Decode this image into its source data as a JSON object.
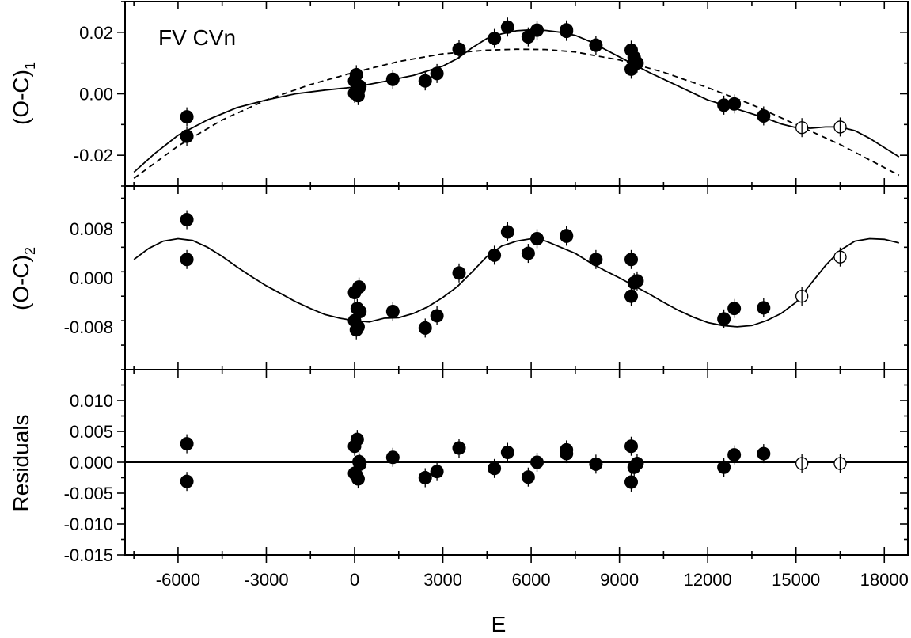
{
  "chart_data": [
    {
      "panel": "top",
      "type": "scatter",
      "title": "",
      "annotation": "FV CVn",
      "xlabel": "E",
      "ylabel": "(O-C)",
      "ylabel_subscript": "1",
      "xlim": [
        -7800,
        18800
      ],
      "ylim": [
        -0.03,
        0.03
      ],
      "yticks": [
        -0.02,
        0.0,
        0.02
      ],
      "ytick_labels": [
        "-0.02",
        "0.00",
        "0.02"
      ],
      "xticks": [
        -6000,
        -3000,
        0,
        3000,
        6000,
        9000,
        12000,
        15000,
        18000
      ],
      "series": [
        {
          "marker": "filled-circle",
          "x": [
            -5700,
            -5700,
            0,
            0,
            60,
            90,
            120,
            150,
            180,
            1300,
            2400,
            2800,
            3550,
            4750,
            5200,
            5900,
            6200,
            7200,
            7200,
            8200,
            9400,
            9400,
            9500,
            9600,
            12550,
            12900,
            13900
          ],
          "y": [
            -0.0075,
            -0.0138,
            0.0002,
            0.0042,
            0.0062,
            0.0028,
            -0.0006,
            0.0016,
            0.0024,
            0.0047,
            0.0042,
            0.0066,
            0.0145,
            0.018,
            0.0217,
            0.0185,
            0.0207,
            0.0208,
            0.0203,
            0.0158,
            0.0142,
            0.008,
            0.0118,
            0.01,
            -0.0037,
            -0.0033,
            -0.0072
          ]
        },
        {
          "marker": "open-circle",
          "x": [
            15200,
            16500
          ],
          "y": [
            -0.011,
            -0.0108
          ]
        },
        {
          "marker": "solid-line-fit",
          "x": [
            -7500,
            -6800,
            -6000,
            -5000,
            -4000,
            -3000,
            -2000,
            -1000,
            0,
            1000,
            2000,
            3000,
            3500,
            4000,
            4500,
            5000,
            5500,
            6000,
            6500,
            7000,
            7500,
            8000,
            9000,
            10000,
            11000,
            12000,
            13000,
            14000,
            14500,
            15000,
            15500,
            16000,
            16500,
            17000,
            17500,
            18000,
            18500
          ],
          "y": [
            -0.0255,
            -0.0195,
            -0.0135,
            -0.0085,
            -0.0045,
            -0.002,
            0.0,
            0.0012,
            0.0022,
            0.004,
            0.006,
            0.009,
            0.0115,
            0.015,
            0.018,
            0.0195,
            0.0205,
            0.0208,
            0.0206,
            0.02,
            0.019,
            0.017,
            0.012,
            0.007,
            0.0025,
            -0.002,
            -0.005,
            -0.008,
            -0.0098,
            -0.011,
            -0.0112,
            -0.0108,
            -0.0108,
            -0.012,
            -0.0145,
            -0.0175,
            -0.0205
          ]
        },
        {
          "marker": "dashed-line-fit",
          "x": [
            -7500,
            -6000,
            -4500,
            -3000,
            -1500,
            0,
            1500,
            3000,
            4500,
            5500,
            6500,
            7500,
            9000,
            10500,
            12000,
            13500,
            15000,
            16500,
            18000,
            18500
          ],
          "y": [
            -0.0275,
            -0.017,
            -0.0085,
            -0.002,
            0.003,
            0.007,
            0.0105,
            0.013,
            0.0142,
            0.0145,
            0.0144,
            0.0136,
            0.011,
            0.007,
            0.002,
            -0.0035,
            -0.01,
            -0.0165,
            -0.024,
            -0.0265
          ]
        }
      ]
    },
    {
      "panel": "middle",
      "type": "scatter",
      "ylabel": "(O-C)",
      "ylabel_subscript": "2",
      "xlim": [
        -7800,
        18800
      ],
      "ylim": [
        -0.015,
        0.015
      ],
      "yticks": [
        -0.008,
        0.0,
        0.008
      ],
      "ytick_labels": [
        "-0.008",
        "0.000",
        "0.008"
      ],
      "series": [
        {
          "marker": "filled-circle",
          "x": [
            -5700,
            -5700,
            0,
            0,
            60,
            90,
            120,
            150,
            180,
            1300,
            2400,
            2800,
            3550,
            4750,
            5200,
            5900,
            6200,
            7200,
            7200,
            8200,
            9400,
            9400,
            9500,
            9600,
            12550,
            12900,
            13900
          ],
          "y": [
            0.0095,
            0.003,
            -0.0024,
            -0.007,
            -0.0085,
            -0.005,
            -0.008,
            -0.0015,
            -0.0055,
            -0.0055,
            -0.0082,
            -0.0062,
            0.0008,
            0.0037,
            0.0075,
            0.004,
            0.0064,
            0.0069,
            0.0068,
            0.003,
            0.003,
            -0.003,
            -0.0008,
            -0.0005,
            -0.0067,
            -0.005,
            -0.0049
          ]
        },
        {
          "marker": "open-circle",
          "x": [
            15200,
            16500
          ],
          "y": [
            -0.003,
            0.0034
          ]
        },
        {
          "marker": "solid-line-fit",
          "x": [
            -7500,
            -7000,
            -6500,
            -6000,
            -5500,
            -5000,
            -4500,
            -4000,
            -3500,
            -3000,
            -2500,
            -2000,
            -1500,
            -1000,
            -500,
            0,
            500,
            1000,
            1500,
            2000,
            2500,
            3000,
            3500,
            4000,
            4500,
            5000,
            5500,
            6000,
            6500,
            7000,
            7500,
            8000,
            8500,
            9000,
            9500,
            10000,
            10500,
            11000,
            11500,
            12000,
            12500,
            13000,
            13500,
            14000,
            14500,
            15000,
            15500,
            16000,
            16500,
            17000,
            17500,
            18000,
            18500
          ],
          "y": [
            0.003,
            0.0048,
            0.006,
            0.0064,
            0.0061,
            0.005,
            0.0035,
            0.0018,
            0.0002,
            -0.0013,
            -0.0026,
            -0.0039,
            -0.005,
            -0.006,
            -0.0066,
            -0.007,
            -0.0072,
            -0.0066,
            -0.0065,
            -0.0058,
            -0.0047,
            -0.0032,
            -0.0014,
            0.001,
            0.0035,
            0.0052,
            0.006,
            0.0064,
            0.006,
            0.005,
            0.004,
            0.0025,
            0.0012,
            0.0,
            -0.0013,
            -0.0026,
            -0.004,
            -0.0053,
            -0.0064,
            -0.0073,
            -0.0078,
            -0.008,
            -0.0078,
            -0.007,
            -0.0058,
            -0.004,
            -0.001,
            0.002,
            0.0045,
            0.006,
            0.0064,
            0.0063,
            0.0057
          ]
        }
      ]
    },
    {
      "panel": "bottom",
      "type": "scatter",
      "ylabel": "Residuals",
      "xlabel": "E",
      "xlim": [
        -7800,
        18800
      ],
      "ylim": [
        -0.015,
        0.015
      ],
      "yticks": [
        -0.015,
        -0.01,
        -0.005,
        0.0,
        0.005,
        0.01
      ],
      "ytick_labels": [
        "-0.015",
        "-0.010",
        "-0.005",
        "0.000",
        "0.005",
        "0.010"
      ],
      "xticks": [
        -6000,
        -3000,
        0,
        3000,
        6000,
        9000,
        12000,
        15000,
        18000
      ],
      "xtick_labels": [
        "-6000",
        "-3000",
        "0",
        "3000",
        "6000",
        "9000",
        "12000",
        "15000",
        "18000"
      ],
      "series": [
        {
          "marker": "filled-circle",
          "x": [
            -5700,
            -5700,
            0,
            0,
            60,
            90,
            120,
            150,
            180,
            1300,
            2400,
            2800,
            3550,
            4750,
            5200,
            5900,
            6200,
            7200,
            7200,
            8200,
            9400,
            9400,
            9500,
            9600,
            12550,
            12900,
            13900
          ],
          "y": [
            0.003,
            -0.0031,
            0.0026,
            -0.0018,
            -0.0021,
            0.0037,
            -0.0027,
            0.0001,
            -0.0003,
            0.0008,
            -0.0025,
            -0.0015,
            0.0023,
            -0.001,
            0.0016,
            -0.0024,
            0.0,
            0.002,
            0.0014,
            -0.0003,
            0.0026,
            -0.0032,
            -0.0008,
            -0.0002,
            -0.0008,
            0.0012,
            0.0014
          ]
        },
        {
          "marker": "open-circle",
          "x": [
            15200,
            16500
          ],
          "y": [
            -0.0002,
            -0.0002
          ]
        },
        {
          "marker": "zero-line",
          "y": 0.0
        }
      ]
    }
  ]
}
